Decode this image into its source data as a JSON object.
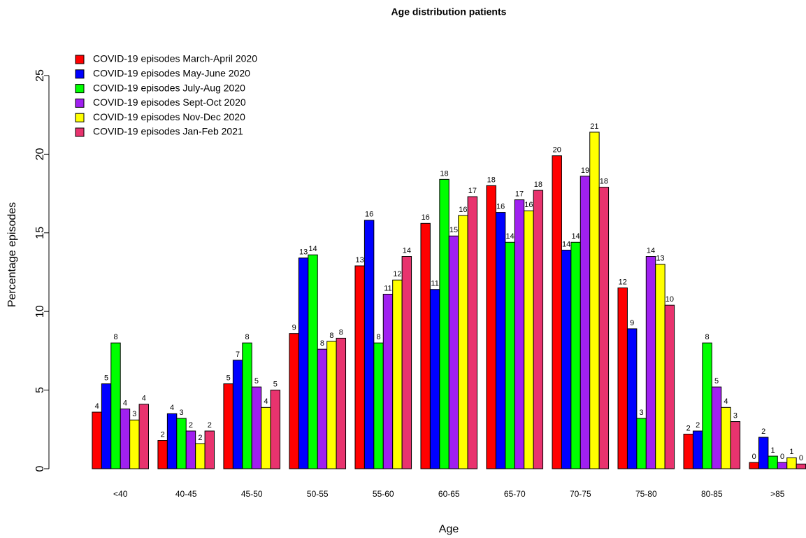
{
  "chart_data": {
    "type": "bar",
    "title": "Age distribution patients",
    "x_label": "Age",
    "y_label": "Percentage episodes",
    "categories": [
      "<40",
      "40-45",
      "45-50",
      "50-55",
      "55-60",
      "60-65",
      "65-70",
      "70-75",
      "75-80",
      "80-85",
      ">85"
    ],
    "ylim": [
      0,
      25
    ],
    "yticks": [
      0,
      5,
      10,
      15,
      20,
      25
    ],
    "legend": "top-left",
    "series": [
      {
        "name": "COVID-19 episodes March-April 2020",
        "color": "#ff0000",
        "values": [
          3.6,
          1.8,
          5.4,
          8.6,
          12.9,
          15.6,
          18.0,
          19.9,
          11.5,
          2.2,
          0.4
        ],
        "value_labels": [
          "4",
          "2",
          "5",
          "9",
          "13",
          "16",
          "18",
          "20",
          "12",
          "2",
          "0"
        ]
      },
      {
        "name": "COVID-19 episodes May-June 2020",
        "color": "#0000ff",
        "values": [
          5.4,
          3.5,
          6.9,
          13.4,
          15.8,
          11.4,
          16.3,
          13.9,
          8.9,
          2.4,
          2.0
        ],
        "value_labels": [
          "5",
          "4",
          "7",
          "13",
          "16",
          "11",
          "16",
          "14",
          "9",
          "2",
          "2"
        ]
      },
      {
        "name": "COVID-19 episodes July-Aug 2020",
        "color": "#00ff00",
        "values": [
          8.0,
          3.2,
          8.0,
          13.6,
          8.0,
          18.4,
          14.4,
          14.4,
          3.2,
          8.0,
          0.8
        ],
        "value_labels": [
          "8",
          "3",
          "8",
          "14",
          "8",
          "18",
          "14",
          "14",
          "3",
          "8",
          "1"
        ]
      },
      {
        "name": "COVID-19 episodes Sept-Oct 2020",
        "color": "#a020f0",
        "values": [
          3.8,
          2.4,
          5.2,
          7.6,
          11.1,
          14.8,
          17.1,
          18.6,
          13.5,
          5.2,
          0.4
        ],
        "value_labels": [
          "4",
          "2",
          "5",
          "8",
          "11",
          "15",
          "17",
          "19",
          "14",
          "5",
          "0"
        ]
      },
      {
        "name": "COVID-19 episodes Nov-Dec 2020",
        "color": "#ffff00",
        "values": [
          3.1,
          1.6,
          3.9,
          8.1,
          12.0,
          16.1,
          16.4,
          21.4,
          13.0,
          3.9,
          0.7
        ],
        "value_labels": [
          "3",
          "2",
          "4",
          "8",
          "12",
          "16",
          "16",
          "21",
          "13",
          "4",
          "1"
        ]
      },
      {
        "name": "COVID-19 episodes Jan-Feb 2021",
        "color": "#e8336e",
        "values": [
          4.1,
          2.4,
          5.0,
          8.3,
          13.5,
          17.3,
          17.7,
          17.9,
          10.4,
          3.0,
          0.3
        ],
        "value_labels": [
          "4",
          "2",
          "5",
          "8",
          "14",
          "17",
          "18",
          "18",
          "10",
          "3",
          "0"
        ]
      }
    ]
  }
}
